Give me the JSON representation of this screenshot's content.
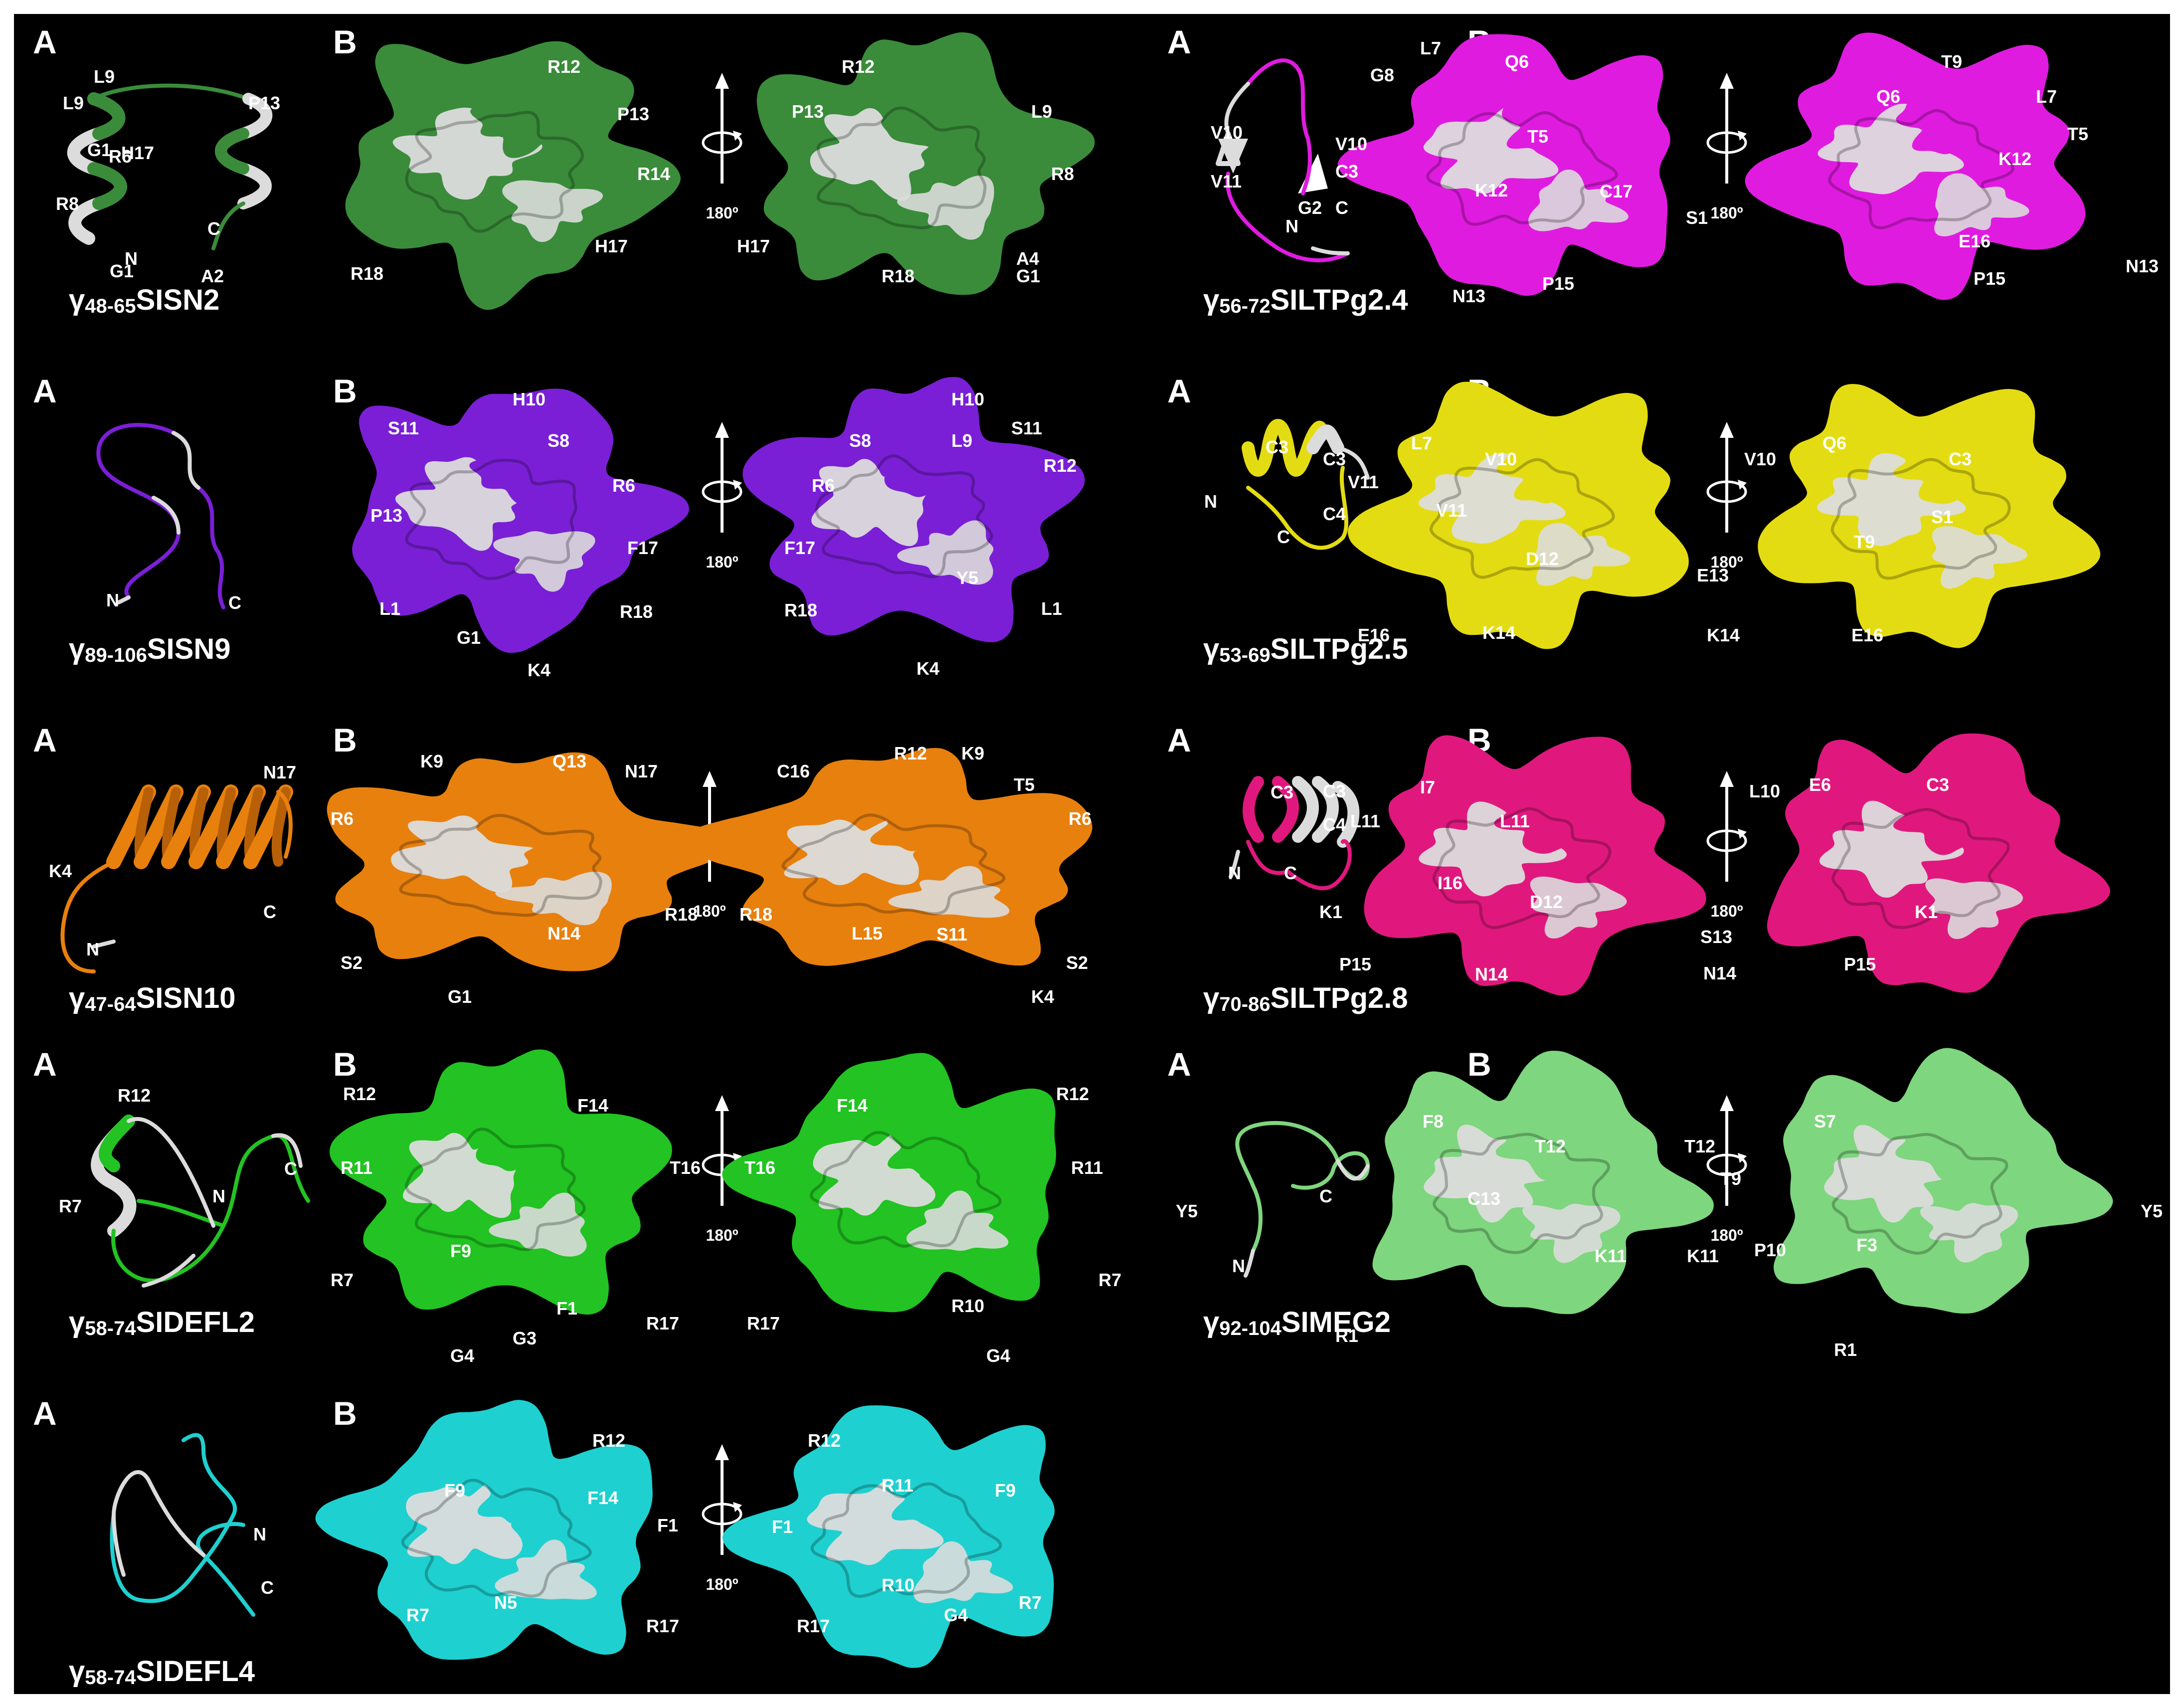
{
  "panel_letters": {
    "a": "A",
    "b": "B"
  },
  "rotation_label": "180º",
  "colors": {
    "SISN2": "#3a8c3a",
    "SISN9": "#7a1fd6",
    "SISN10": "#e8800e",
    "SIDEFL2": "#22c322",
    "SIDEFL4": "#1fd0d0",
    "SILTPg2.4": "#e01be0",
    "SILTPg2.5": "#e4dc12",
    "SILTPg2.8": "#e0187e",
    "SIMEG2": "#7ed67e",
    "white": "#dcdcdc"
  },
  "peptides": [
    {
      "id": "SISN2",
      "title_sub": "48-65",
      "title_main": "SISN2",
      "ribbon_labels": [
        "L9",
        "P13",
        "H17",
        "G1",
        "N",
        "C"
      ],
      "front_labels": [
        "L9",
        "R12",
        "P13",
        "R6",
        "R8",
        "R14",
        "H17",
        "G1",
        "A2",
        "R18"
      ],
      "back_labels": [
        "R12",
        "L9",
        "P13",
        "R8",
        "H17",
        "A4",
        "R18",
        "G1"
      ]
    },
    {
      "id": "SISN9",
      "title_sub": "89-106",
      "title_main": "SISN9",
      "ribbon_labels": [
        "N",
        "C"
      ],
      "front_labels": [
        "H10",
        "S11",
        "S8",
        "R6",
        "P13",
        "F17",
        "L1",
        "R18",
        "G1",
        "K4"
      ],
      "back_labels": [
        "H10",
        "S8",
        "L9",
        "S11",
        "R12",
        "R6",
        "F17",
        "Y5",
        "R18",
        "L1",
        "K4"
      ]
    },
    {
      "id": "SISN10",
      "title_sub": "47-64",
      "title_main": "SISN10",
      "ribbon_labels": [
        "N17",
        "K4",
        "C",
        "N"
      ],
      "front_labels": [
        "K9",
        "Q13",
        "N17",
        "R6",
        "R18",
        "N14",
        "S2",
        "G1"
      ],
      "back_labels": [
        "R12",
        "K9",
        "C16",
        "T5",
        "R6",
        "R18",
        "L15",
        "S11",
        "S2",
        "K4"
      ]
    },
    {
      "id": "SIDEFL2",
      "title_sub": "58-74",
      "title_main": "SIDEFL2",
      "ribbon_labels": [
        "R12",
        "C",
        "R7",
        "N"
      ],
      "front_labels": [
        "R12",
        "F14",
        "R11",
        "T16",
        "F9",
        "R7",
        "F1",
        "R17",
        "G3",
        "G4"
      ],
      "back_labels": [
        "F14",
        "R12",
        "T16",
        "R11",
        "R7",
        "R10",
        "R17",
        "G4"
      ]
    },
    {
      "id": "SIDEFL4",
      "title_sub": "58-74",
      "title_main": "SIDEFL4",
      "ribbon_labels": [
        "N",
        "C"
      ],
      "front_labels": [
        "R12",
        "F9",
        "F14",
        "F1",
        "R7",
        "N5",
        "R17"
      ],
      "back_labels": [
        "R12",
        "R11",
        "F9",
        "F1",
        "R10",
        "R7",
        "G4",
        "R17"
      ]
    },
    {
      "id": "SILTPg2.4",
      "title_sub": "56-72",
      "title_main": "SILTPg2.4",
      "ribbon_labels": [
        "V10",
        "V11",
        "C3",
        "G2",
        "N",
        "C"
      ],
      "front_labels": [
        "L7",
        "Q6",
        "G8",
        "V10",
        "T5",
        "K12",
        "C17",
        "S1",
        "N13",
        "P15"
      ],
      "back_labels": [
        "Q6",
        "L7",
        "T9",
        "T5",
        "K12",
        "E16",
        "N13",
        "P15"
      ]
    },
    {
      "id": "SILTPg2.5",
      "title_sub": "53-69",
      "title_main": "SILTPg2.5",
      "ribbon_labels": [
        "C3",
        "V11",
        "N",
        "C"
      ],
      "front_labels": [
        "L7",
        "C3",
        "V10",
        "C4",
        "V11",
        "D12",
        "E16",
        "K14"
      ],
      "back_labels": [
        "V10",
        "Q6",
        "C3",
        "S1",
        "T9",
        "E13",
        "K14",
        "E16"
      ]
    },
    {
      "id": "SILTPg2.8",
      "title_sub": "70-86",
      "title_main": "SILTPg2.8",
      "ribbon_labels": [
        "C3",
        "L11",
        "N",
        "C"
      ],
      "front_labels": [
        "C3",
        "I7",
        "C4",
        "L11",
        "I16",
        "K1",
        "D12",
        "P15",
        "N14"
      ],
      "back_labels": [
        "L10",
        "E6",
        "C3",
        "K1",
        "S13",
        "N14",
        "P15"
      ]
    },
    {
      "id": "SIMEG2",
      "title_sub": "92-104",
      "title_main": "SIMEG2",
      "ribbon_labels": [
        "C",
        "N"
      ],
      "front_labels": [
        "F8",
        "T12",
        "Y5",
        "C13",
        "K11",
        "R1"
      ],
      "back_labels": [
        "T12",
        "S7",
        "T9",
        "Y5",
        "K11",
        "P10",
        "F3",
        "R1"
      ]
    }
  ]
}
